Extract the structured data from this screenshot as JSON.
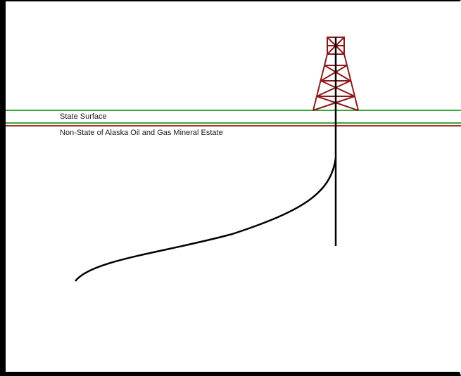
{
  "labels": {
    "state_surface": "State Surface",
    "mineral_estate": "Non-State of Alaska Oil and Gas Mineral Estate"
  },
  "colors": {
    "surface_line": "#3aa63a",
    "mineral_line": "#a83232",
    "derrick": "#8b1a1a",
    "wellbore": "#000000",
    "frame": "#000000"
  },
  "icons": {
    "derrick": "drilling-rig-icon"
  }
}
